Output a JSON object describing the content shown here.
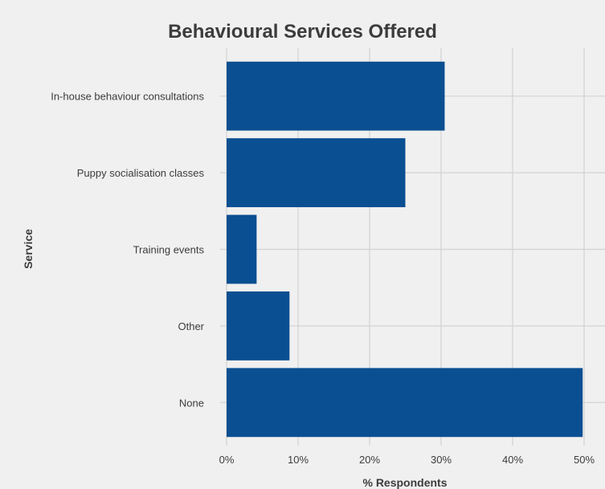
{
  "chart_data": {
    "type": "bar",
    "orientation": "horizontal",
    "title": "Behavioural Services Offered",
    "xlabel": "% Respondents",
    "ylabel": "Service",
    "categories": [
      "In-house behaviour consultations",
      "Puppy socialisation classes",
      "Training events",
      "Other",
      "None"
    ],
    "values": [
      30.5,
      25.0,
      4.2,
      8.8,
      49.8
    ],
    "xlim": [
      0,
      50
    ],
    "x_ticks": [
      0,
      10,
      20,
      30,
      40,
      50
    ],
    "x_tick_labels": [
      "0%",
      "10%",
      "20%",
      "30%",
      "40%",
      "50%"
    ],
    "bar_color": "#0a4f91",
    "background_color": "#f0f0f0",
    "grid_color": "#d2d2d2",
    "grid": true
  }
}
